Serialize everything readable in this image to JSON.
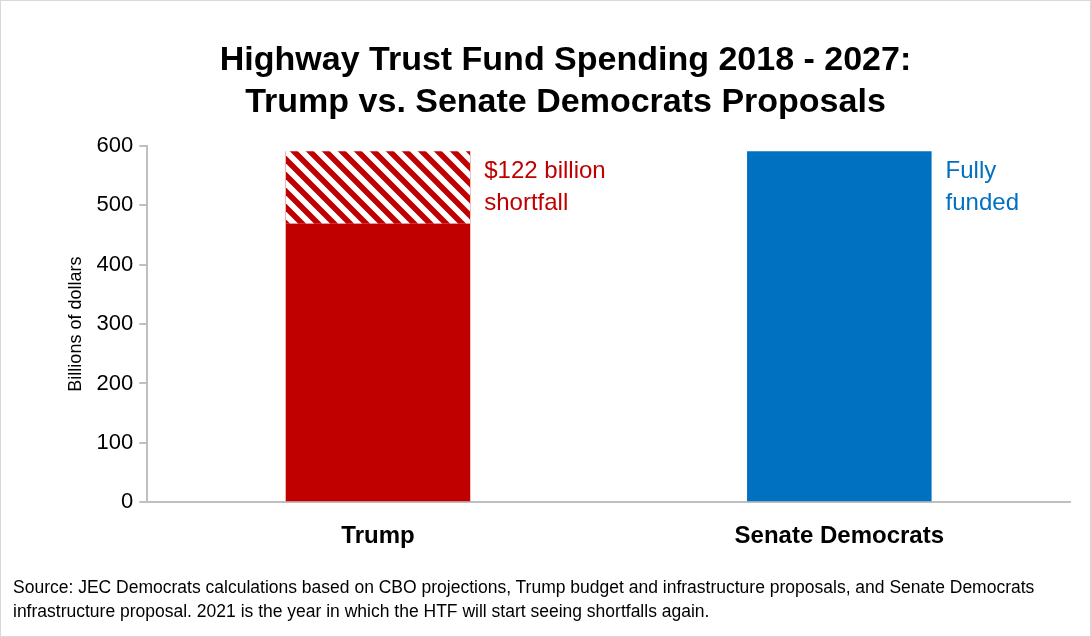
{
  "chart_data": {
    "type": "bar",
    "title": "Highway Trust Fund Spending 2018 - 2027:\nTrump vs. Senate Democrats Proposals",
    "ylabel": "Billions of dollars",
    "categories": [
      "Trump",
      "Senate Democrats"
    ],
    "stacked": true,
    "series": [
      {
        "colors": [
          "#c00000",
          "#0070c0"
        ],
        "values": [
          469,
          591
        ]
      },
      {
        "color": "#c00000",
        "values": [
          122,
          null
        ]
      }
    ],
    "ylim": [
      0,
      600
    ],
    "yticks": [
      0,
      100,
      200,
      300,
      400,
      500,
      600
    ],
    "grid": false,
    "legend": false,
    "annotations": [
      "$122 billion\nshortfall",
      "Fully\nfunded",
      "Source: JEC Democrats calculations based on CBO projections, Trump budget and infrastructure proposals, and Senate Democrats infrastructure proposal. 2021 is the year in which the HTF will start seeing shortfalls again."
    ]
  }
}
